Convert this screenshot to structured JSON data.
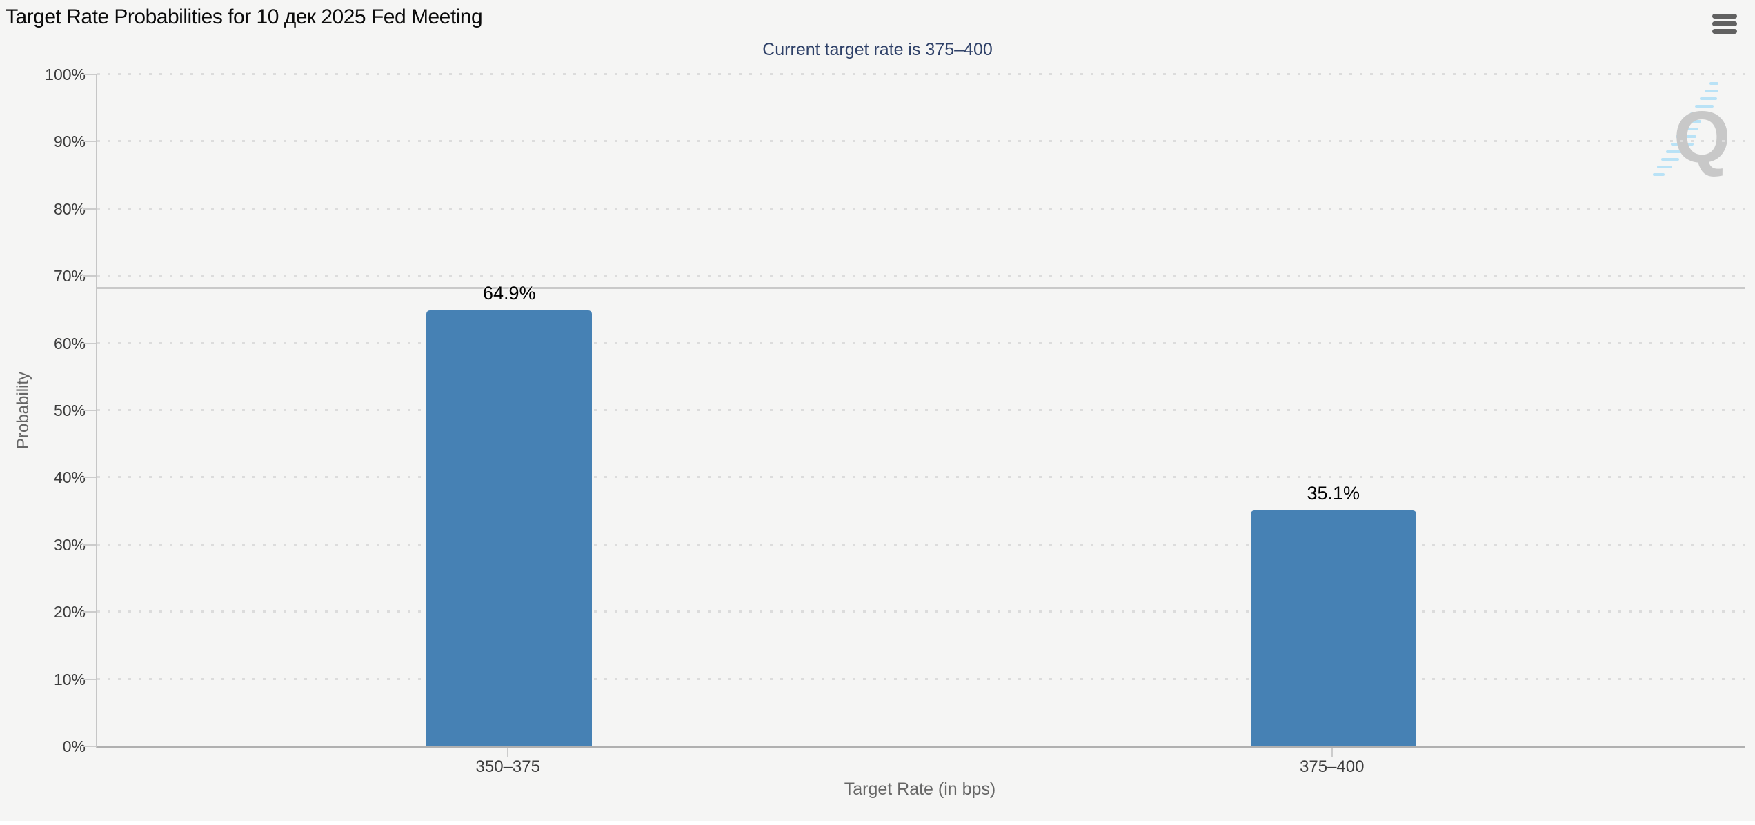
{
  "header": {
    "menu_icon": "hamburger-menu",
    "watermark_icon": "quikstrike-q-logo"
  },
  "chart_data": {
    "type": "bar",
    "title": "Target Rate Probabilities for 10 дек 2025 Fed Meeting",
    "subtitle": "Current target rate is 375–400",
    "categories": [
      "350–375",
      "375–400"
    ],
    "values": [
      64.9,
      35.1
    ],
    "value_labels": [
      "64.9%",
      "35.1%"
    ],
    "xlabel": "Target Rate (in bps)",
    "ylabel": "Probability",
    "ylim": [
      0,
      100
    ],
    "ytick_step": 10,
    "ytick_labels": [
      "0%",
      "10%",
      "20%",
      "30%",
      "40%",
      "50%",
      "60%",
      "70%",
      "80%",
      "90%",
      "100%"
    ],
    "reference_line_pct": 68.2,
    "grid": "dotted horizontal, every 10%",
    "legend": "none",
    "bar_color": "#4681b4",
    "background_color": "#f5f5f4",
    "watermark_letter": "Q"
  }
}
